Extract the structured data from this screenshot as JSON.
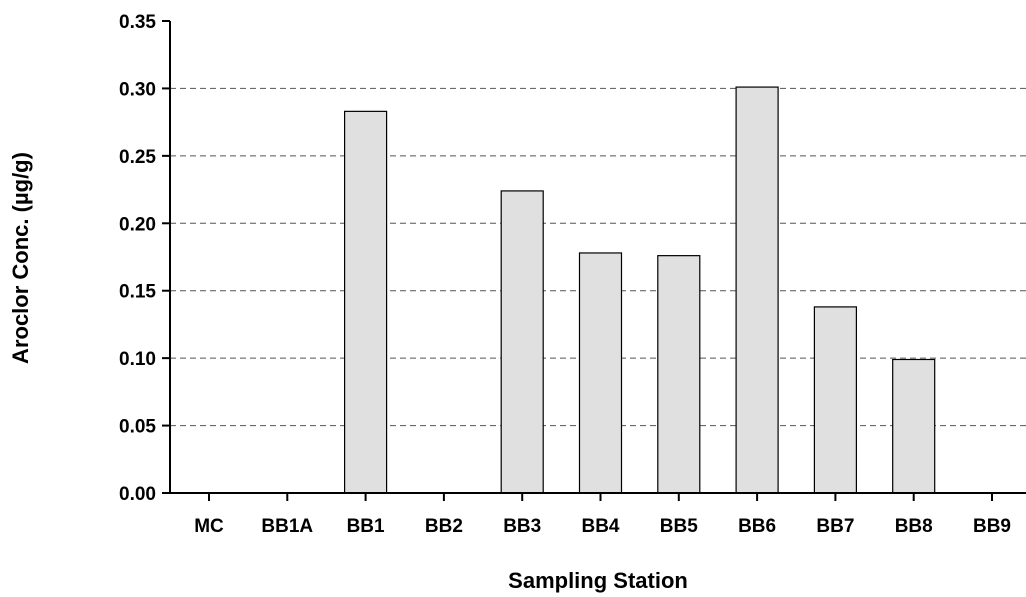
{
  "chart_data": {
    "type": "bar",
    "categories": [
      "MC",
      "BB1A",
      "BB1",
      "BB2",
      "BB3",
      "BB4",
      "BB5",
      "BB6",
      "BB7",
      "BB8",
      "BB9"
    ],
    "values": [
      0,
      0,
      0.283,
      0,
      0.224,
      0.178,
      0.176,
      0.301,
      0.138,
      0.099,
      0
    ],
    "xlabel": "Sampling Station",
    "ylabel": "Aroclor Conc. (µg/g)",
    "ylim": [
      0,
      0.35
    ],
    "yticks": [
      "0.00",
      "0.05",
      "0.10",
      "0.15",
      "0.20",
      "0.25",
      "0.30",
      "0.35"
    ],
    "grid": "horizontal dashed",
    "bar_color": "#e0e0e0",
    "bar_stroke": "#000000"
  }
}
